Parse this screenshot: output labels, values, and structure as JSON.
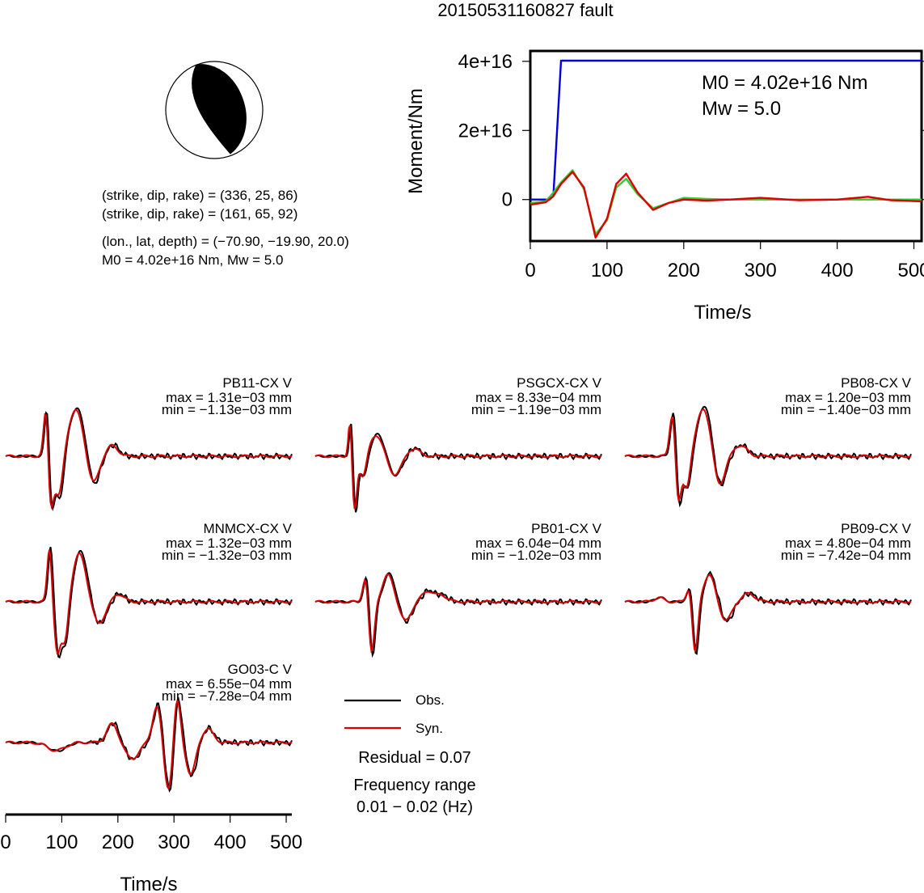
{
  "title": "20150531160827 fault",
  "focal_mechanism": {
    "plane1": "(strike, dip, rake) = (336, 25, 86)",
    "plane2": "(strike, dip, rake) = (161, 65, 92)",
    "location": "(lon., lat, depth) = (−70.90, −19.90, 20.0)",
    "magnitude_text": "M0 = 4.02e+16 Nm, Mw = 5.0",
    "strike": 336,
    "dip": 25,
    "rake": 86,
    "strike2": 161,
    "dip2": 65,
    "rake2": 92
  },
  "chart_data": [
    {
      "type": "line",
      "id": "moment-rate",
      "xlabel": "Time/s",
      "ylabel": "Moment/Nm",
      "xlim": [
        0,
        510
      ],
      "ylim": [
        -1.2e+16,
        4.3e+16
      ],
      "xticks": [
        0,
        100,
        200,
        300,
        400,
        500
      ],
      "yticks": [
        {
          "value": 0,
          "label": "0"
        },
        {
          "value": 2e+16,
          "label": "2e+16"
        },
        {
          "value": 4e+16,
          "label": "4e+16"
        }
      ],
      "annotation": {
        "m0": "M0 = 4.02e+16 Nm",
        "mw": "Mw = 5.0"
      },
      "series": [
        {
          "color": "#0000dd",
          "x": [
            0,
            25,
            30,
            40,
            510
          ],
          "y": [
            0,
            0,
            1000000000000000.0,
            4.02e+16,
            4.02e+16
          ]
        },
        {
          "color": "#33cc33",
          "x": [
            0,
            20,
            30,
            40,
            55,
            70,
            85,
            100,
            112,
            125,
            140,
            160,
            180,
            200,
            230,
            260,
            300,
            350,
            400,
            450,
            510
          ],
          "y": [
            -1000000000000000.0,
            -500000000000000.0,
            2000000000000000.0,
            5000000000000000.0,
            8500000000000000.0,
            3000000000000000.0,
            -1e+16,
            -6000000000000000.0,
            3500000000000000.0,
            6000000000000000.0,
            1500000000000000.0,
            -2500000000000000.0,
            -1000000000000000.0,
            500000000000000.0,
            200000000000000.0,
            0.0,
            0.0,
            0.0,
            0.0,
            0.0,
            0.0
          ]
        },
        {
          "color": "#dd0000",
          "x": [
            0,
            20,
            30,
            40,
            55,
            70,
            85,
            100,
            112,
            125,
            140,
            160,
            180,
            200,
            230,
            260,
            300,
            350,
            400,
            440,
            470,
            510
          ],
          "y": [
            -1500000000000000.0,
            -800000000000000.0,
            1000000000000000.0,
            4500000000000000.0,
            8000000000000000.0,
            3500000000000000.0,
            -1.1e+16,
            -5500000000000000.0,
            4500000000000000.0,
            7500000000000000.0,
            2000000000000000.0,
            -3000000000000000.0,
            -1000000000000000.0,
            0.0,
            -300000000000000.0,
            0.0,
            500000000000000.0,
            -200000000000000.0,
            0.0,
            800000000000000.0,
            -200000000000000.0,
            -500000000000000.0
          ]
        }
      ]
    },
    {
      "type": "line",
      "id": "waveforms",
      "xlabel": "Time/s",
      "xlim": [
        0,
        510
      ],
      "xticks": [
        0,
        100,
        200,
        300,
        400,
        500
      ],
      "legend": [
        {
          "name": "Obs.",
          "color": "#000000"
        },
        {
          "name": "Syn.",
          "color": "#dd0000"
        }
      ],
      "stations": [
        {
          "name": "PB11-CX V",
          "max": "max = 1.31e−03 mm",
          "min": "min = −1.13e−03 mm",
          "peaks": [
            {
              "t": 72,
              "a": 1.0,
              "w": 4
            },
            {
              "t": 80,
              "a": -0.9,
              "w": 5
            },
            {
              "t": 95,
              "a": -0.8,
              "w": 7
            },
            {
              "t": 125,
              "a": 0.85,
              "w": 14
            },
            {
              "t": 155,
              "a": -0.55,
              "w": 10
            },
            {
              "t": 190,
              "a": 0.2,
              "w": 10
            }
          ]
        },
        {
          "name": "PSGCX-CX V",
          "max": "max = 8.33e−04 mm",
          "min": "min = −1.19e−03 mm",
          "peaks": [
            {
              "t": 62,
              "a": 0.7,
              "w": 3
            },
            {
              "t": 70,
              "a": -1.0,
              "w": 4
            },
            {
              "t": 85,
              "a": -0.4,
              "w": 6
            },
            {
              "t": 110,
              "a": 0.4,
              "w": 12
            },
            {
              "t": 140,
              "a": -0.35,
              "w": 12
            },
            {
              "t": 175,
              "a": 0.15,
              "w": 10
            }
          ]
        },
        {
          "name": "PB08-CX V",
          "max": "max = 1.20e−03 mm",
          "min": "min = −1.40e−03 mm",
          "peaks": [
            {
              "t": 85,
              "a": 0.85,
              "w": 5
            },
            {
              "t": 95,
              "a": -0.9,
              "w": 5
            },
            {
              "t": 110,
              "a": -0.6,
              "w": 6
            },
            {
              "t": 140,
              "a": 0.9,
              "w": 12
            },
            {
              "t": 168,
              "a": -0.55,
              "w": 10
            },
            {
              "t": 205,
              "a": 0.2,
              "w": 12
            }
          ]
        },
        {
          "name": "MNMCX-CX V",
          "max": "max = 1.32e−03 mm",
          "min": "min = −1.32e−03 mm",
          "peaks": [
            {
              "t": 78,
              "a": 1.0,
              "w": 4
            },
            {
              "t": 92,
              "a": -0.9,
              "w": 5
            },
            {
              "t": 105,
              "a": -0.8,
              "w": 6
            },
            {
              "t": 132,
              "a": 0.9,
              "w": 12
            },
            {
              "t": 165,
              "a": -0.4,
              "w": 12
            },
            {
              "t": 200,
              "a": 0.15,
              "w": 10
            }
          ]
        },
        {
          "name": "PB01-CX V",
          "max": "max = 6.04e−04 mm",
          "min": "min = −1.02e−03 mm",
          "peaks": [
            {
              "t": 90,
              "a": 0.5,
              "w": 5
            },
            {
              "t": 100,
              "a": -1.0,
              "w": 5
            },
            {
              "t": 130,
              "a": 0.5,
              "w": 10
            },
            {
              "t": 160,
              "a": -0.35,
              "w": 10
            },
            {
              "t": 200,
              "a": 0.2,
              "w": 10
            },
            {
              "t": 225,
              "a": 0.12,
              "w": 10
            }
          ]
        },
        {
          "name": "PB09-CX V",
          "max": "max = 4.80e−04 mm",
          "min": "min = −7.42e−04 mm",
          "peaks": [
            {
              "t": 60,
              "a": 0.08,
              "w": 8
            },
            {
              "t": 115,
              "a": 0.3,
              "w": 5
            },
            {
              "t": 125,
              "a": -1.0,
              "w": 5
            },
            {
              "t": 150,
              "a": 0.5,
              "w": 10
            },
            {
              "t": 180,
              "a": -0.35,
              "w": 10
            },
            {
              "t": 220,
              "a": 0.15,
              "w": 12
            }
          ]
        },
        {
          "name": "GO03-C V",
          "max": "max = 6.55e−04 mm",
          "min": "min = −7.28e−04 mm",
          "peaks": [
            {
              "t": 90,
              "a": -0.15,
              "w": 15
            },
            {
              "t": 190,
              "a": 0.35,
              "w": 10
            },
            {
              "t": 225,
              "a": -0.3,
              "w": 12
            },
            {
              "t": 270,
              "a": 0.7,
              "w": 8
            },
            {
              "t": 290,
              "a": -0.9,
              "w": 8
            },
            {
              "t": 305,
              "a": 0.9,
              "w": 6
            },
            {
              "t": 330,
              "a": -0.6,
              "w": 8
            },
            {
              "t": 360,
              "a": 0.25,
              "w": 10
            }
          ]
        }
      ]
    }
  ],
  "info": {
    "residual": "Residual = 0.07",
    "freq_label": "Frequency range",
    "freq_value": "0.01 − 0.02 (Hz)"
  }
}
